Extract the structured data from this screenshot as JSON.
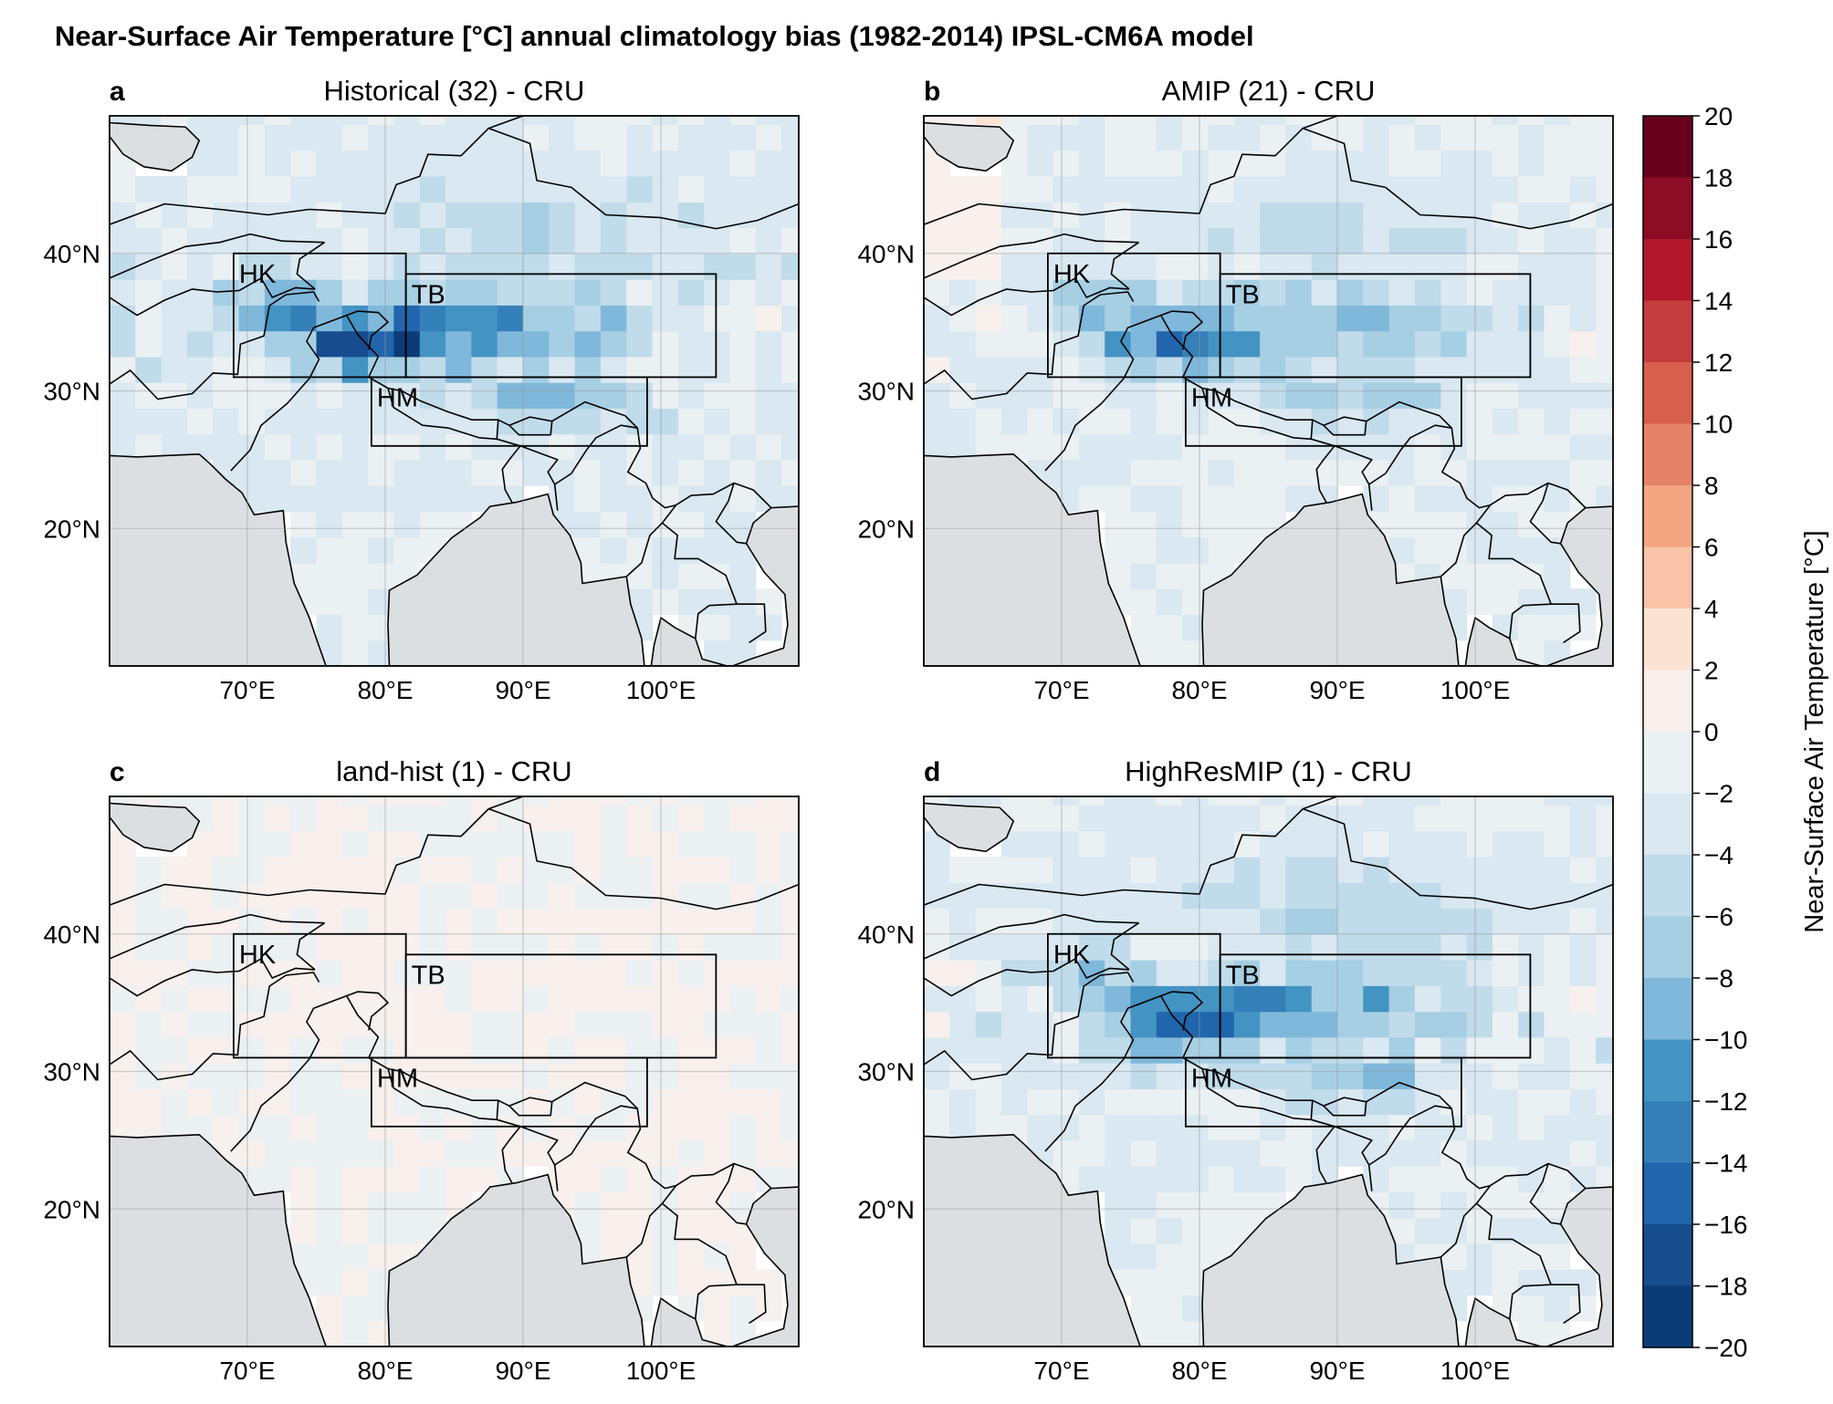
{
  "figure": {
    "title": "Near-Surface Air Temperature [°C] annual climatology bias (1982-2014) IPSL-CM6A model"
  },
  "panels": [
    {
      "letter": "a",
      "title": "Historical (32) - CRU",
      "intensity": 1.0
    },
    {
      "letter": "b",
      "title": "AMIP (21) - CRU",
      "intensity": 0.82
    },
    {
      "letter": "c",
      "title": "land-hist (1) - CRU",
      "intensity": 0.0
    },
    {
      "letter": "d",
      "title": "HighResMIP (1) - CRU",
      "intensity": 0.92
    }
  ],
  "map": {
    "lon_range": [
      60,
      110
    ],
    "lat_range": [
      10,
      50
    ],
    "lon_ticks": [
      "70°E",
      "80°E",
      "90°E",
      "100°E"
    ],
    "lat_ticks": [
      "20°N",
      "30°N",
      "40°N"
    ],
    "regions": [
      {
        "name": "HK",
        "lon": [
          69,
          81.5
        ],
        "lat": [
          31,
          40
        ]
      },
      {
        "name": "TB",
        "lon": [
          81.5,
          104
        ],
        "lat": [
          31,
          38.5
        ]
      },
      {
        "name": "HM",
        "lon": [
          79,
          99
        ],
        "lat": [
          26,
          31
        ]
      }
    ],
    "ocean_color": "#dcdfe2"
  },
  "colorbar": {
    "label": "Near-Surface Air Temperature [°C]",
    "ticks": [
      "20",
      "18",
      "16",
      "14",
      "12",
      "10",
      "8",
      "6",
      "4",
      "2",
      "0",
      "−2",
      "−4",
      "−6",
      "−8",
      "−10",
      "−12",
      "−14",
      "−16",
      "−18",
      "−20"
    ],
    "colors": [
      "#67001f",
      "#8c0d25",
      "#b2182b",
      "#c43c3c",
      "#d6604d",
      "#e58267",
      "#f4a582",
      "#f8c3a7",
      "#fbe3d4",
      "#f7f0ec",
      "#ebf0f3",
      "#d9e8f1",
      "#c0dbea",
      "#a6cfe4",
      "#7fb8da",
      "#4393c3",
      "#3580b9",
      "#2166ac",
      "#174c8f",
      "#0c3c77"
    ]
  }
}
